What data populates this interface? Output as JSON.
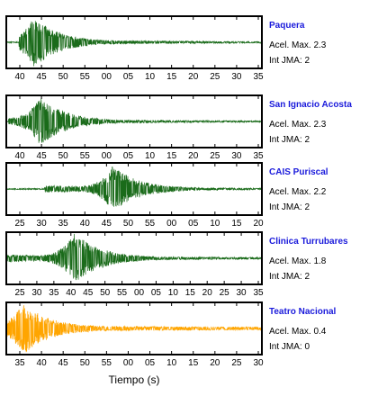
{
  "chart_data": {
    "type": "line",
    "xlabel": "Tiempo (s)",
    "panels": [
      {
        "station": "Paquera",
        "acel_label": "Acel. Max. 2.3",
        "jma_label": "Int JMA: 2",
        "color": "#1a6b1a",
        "x_ticks": [
          "40",
          "45",
          "50",
          "55",
          "00",
          "05",
          "10",
          "15",
          "20",
          "25",
          "30",
          "35"
        ],
        "onset_s": 3,
        "peak_s": 6.5,
        "peak_amplitude": 1.0,
        "baseline_level": 0.02
      },
      {
        "station": "San Ignacio Acosta",
        "acel_label": "Acel. Max. 2.3",
        "jma_label": "Int JMA: 2",
        "color": "#1a6b1a",
        "x_ticks": [
          "40",
          "45",
          "50",
          "55",
          "00",
          "05",
          "10",
          "15",
          "20",
          "25",
          "30",
          "35"
        ],
        "onset_s": 0.5,
        "peak_s": 8,
        "peak_amplitude": 0.95,
        "baseline_level": 0.02
      },
      {
        "station": "CAIS Puriscal",
        "acel_label": "Acel. Max. 2.2",
        "jma_label": "Int JMA: 2",
        "color": "#1a6b1a",
        "x_ticks": [
          "25",
          "30",
          "35",
          "40",
          "45",
          "50",
          "55",
          "00",
          "05",
          "10",
          "15",
          "20"
        ],
        "onset_s": 9,
        "peak_s": 25,
        "peak_amplitude": 0.9,
        "baseline_level": 0.02
      },
      {
        "station": "Clinica Turrubares",
        "acel_label": "Acel. Max. 1.8",
        "jma_label": "Int JMA: 2",
        "color": "#1a6b1a",
        "x_ticks": [
          "25",
          "30",
          "35",
          "40",
          "45",
          "50",
          "55",
          "00",
          "05",
          "10",
          "15",
          "20",
          "25",
          "30",
          "35"
        ],
        "onset_s": 0,
        "peak_s": 16,
        "peak_amplitude": 1.0,
        "baseline_level": 0.03
      },
      {
        "station": "Teatro Nacional",
        "acel_label": "Acel. Max. 0.4",
        "jma_label": "Int JMA: 0",
        "color": "#ffa500",
        "x_ticks": [
          "35",
          "40",
          "45",
          "50",
          "55",
          "00",
          "05",
          "10",
          "15",
          "20",
          "25",
          "30"
        ],
        "onset_s": 0,
        "peak_s": 4,
        "peak_amplitude": 1.0,
        "baseline_level": 0.05
      }
    ]
  }
}
